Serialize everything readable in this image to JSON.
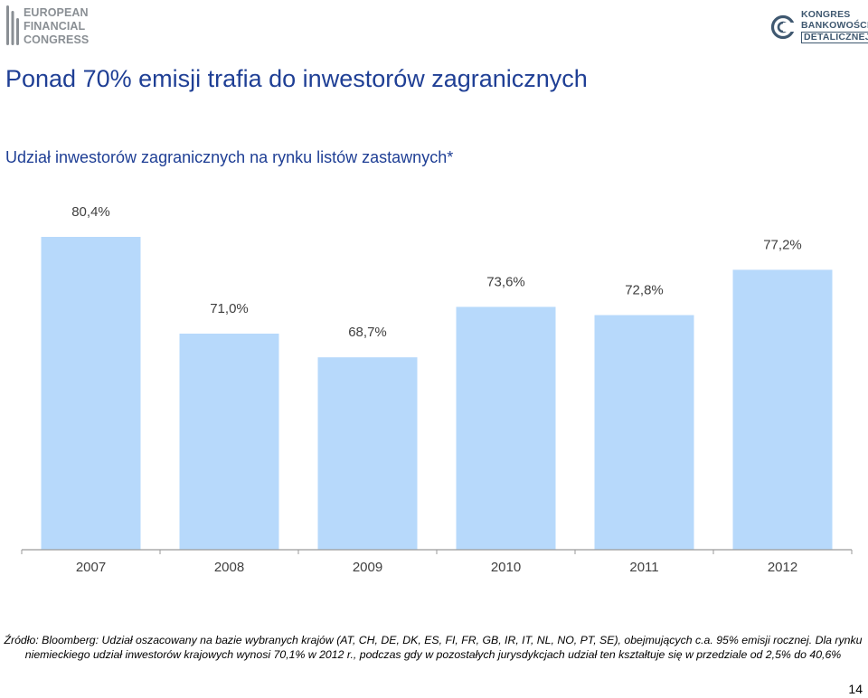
{
  "header": {
    "left_logo": {
      "lines": [
        "EUROPEAN",
        "FINANCIAL",
        "CONGRESS"
      ]
    },
    "right_logo": {
      "lines": [
        "KONGRES",
        "BANKOWOŚCI",
        "DETALICZNEJ"
      ]
    }
  },
  "title": "Ponad 70% emisji trafia do inwestorów zagranicznych",
  "subtitle": "Udział inwestorów zagranicznych na rynku listów zastawnych*",
  "chart_data": {
    "type": "bar",
    "title": "Udział inwestorów zagranicznych na rynku listów zastawnych*",
    "categories": [
      "2007",
      "2008",
      "2009",
      "2010",
      "2011",
      "2012"
    ],
    "values": [
      80.4,
      71.0,
      68.7,
      73.6,
      72.8,
      77.2
    ],
    "value_labels": [
      "80,4%",
      "71,0%",
      "68,7%",
      "73,6%",
      "72,8%",
      "77,2%"
    ],
    "ylim": [
      50,
      80.4
    ],
    "xlabel": "",
    "ylabel": "",
    "grid": false,
    "legend": "none"
  },
  "footnote": "Źródło: Bloomberg: Udział oszacowany na bazie wybranych krajów (AT, CH, DE, DK, ES, FI, FR, GB, IR, IT, NL, NO, PT, SE), obejmujących c.a. 95% emisji rocznej. Dla rynku niemieckiego udział inwestorów krajowych wynosi 70,1% w 2012 r., podczas gdy w pozostałych jurysdykcjach udział ten kształtuje się w przedziale od 2,5% do 40,6%",
  "page_number": "14",
  "colors": {
    "bar_fill": "#B7D9FB",
    "title": "#1F3F95",
    "subtitle": "#1F3F95",
    "axis": "#9A9A9A",
    "label_text": "#404040",
    "efc_logo": "#8A8F94",
    "kbd_logo": "#3F5870"
  },
  "icons": {
    "left_logo_mark": "efc-bars-icon",
    "right_logo_mark": "kbd-circle-icon"
  }
}
